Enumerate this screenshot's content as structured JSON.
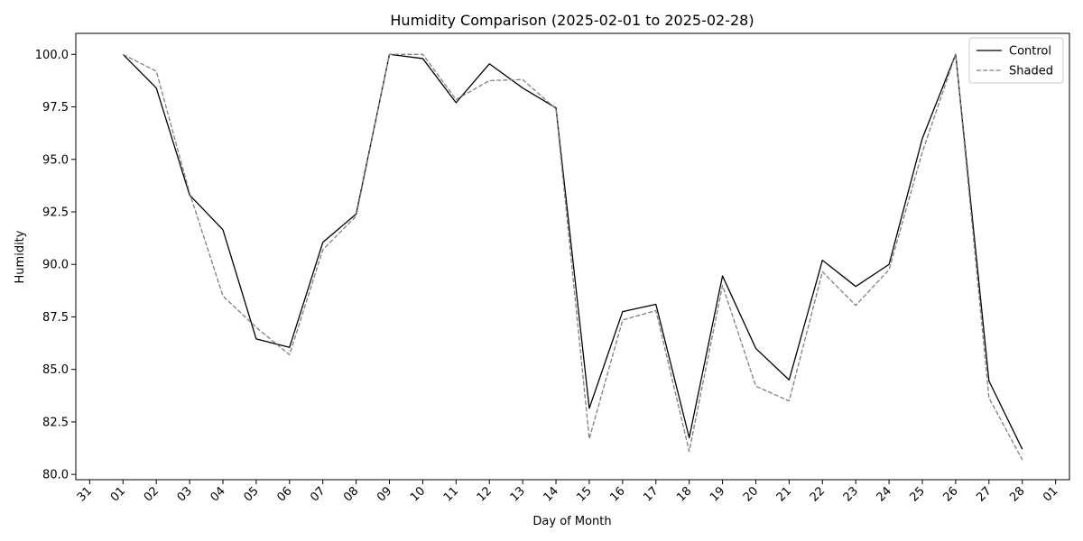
{
  "chart_data": {
    "type": "line",
    "title": "Humidity Comparison (2025-02-01 to 2025-02-28)",
    "xlabel": "Day of Month",
    "ylabel": "Humidity",
    "x_tick_labels": [
      "31",
      "01",
      "02",
      "03",
      "04",
      "05",
      "06",
      "07",
      "08",
      "09",
      "10",
      "11",
      "12",
      "13",
      "14",
      "15",
      "16",
      "17",
      "18",
      "19",
      "20",
      "21",
      "22",
      "23",
      "24",
      "25",
      "26",
      "27",
      "28",
      "01"
    ],
    "x_tick_dates": [
      "2025-01-31",
      "2025-02-01",
      "2025-02-02",
      "2025-02-03",
      "2025-02-04",
      "2025-02-05",
      "2025-02-06",
      "2025-02-07",
      "2025-02-08",
      "2025-02-09",
      "2025-02-10",
      "2025-02-11",
      "2025-02-12",
      "2025-02-13",
      "2025-02-14",
      "2025-02-15",
      "2025-02-16",
      "2025-02-17",
      "2025-02-18",
      "2025-02-19",
      "2025-02-20",
      "2025-02-21",
      "2025-02-22",
      "2025-02-23",
      "2025-02-24",
      "2025-02-25",
      "2025-02-26",
      "2025-02-27",
      "2025-02-28",
      "2025-03-01"
    ],
    "x": [
      "2025-02-01",
      "2025-02-02",
      "2025-02-03",
      "2025-02-04",
      "2025-02-05",
      "2025-02-06",
      "2025-02-07",
      "2025-02-08",
      "2025-02-09",
      "2025-02-10",
      "2025-02-11",
      "2025-02-12",
      "2025-02-13",
      "2025-02-14",
      "2025-02-15",
      "2025-02-16",
      "2025-02-17",
      "2025-02-18",
      "2025-02-19",
      "2025-02-20",
      "2025-02-21",
      "2025-02-22",
      "2025-02-23",
      "2025-02-24",
      "2025-02-25",
      "2025-02-26",
      "2025-02-27",
      "2025-02-28"
    ],
    "y_ticks": [
      "80.0",
      "82.5",
      "85.0",
      "87.5",
      "90.0",
      "92.5",
      "95.0",
      "97.5",
      "100.0"
    ],
    "ylim": [
      79.75,
      101.0
    ],
    "xlim": [
      "2025-01-30T14:00",
      "2025-03-01T10:00"
    ],
    "grid": false,
    "legend_position": "top-right",
    "series": [
      {
        "name": "Control",
        "color": "#000000",
        "style": "solid",
        "values": [
          100.0,
          98.4,
          93.3,
          91.65,
          86.45,
          86.05,
          91.05,
          92.4,
          100.0,
          99.8,
          97.7,
          99.55,
          98.4,
          97.45,
          83.15,
          87.75,
          88.1,
          81.75,
          89.45,
          86.0,
          84.5,
          90.2,
          88.95,
          90.0,
          96.0,
          100.0,
          84.45,
          81.2
        ]
      },
      {
        "name": "Shaded",
        "color": "#808080",
        "style": "dashed",
        "values": [
          100.0,
          99.2,
          93.4,
          88.5,
          87.0,
          85.7,
          90.7,
          92.3,
          100.0,
          100.0,
          97.85,
          98.75,
          98.8,
          97.4,
          81.7,
          87.35,
          87.8,
          81.1,
          89.0,
          84.2,
          83.5,
          89.65,
          88.05,
          89.75,
          95.35,
          100.0,
          83.65,
          80.7
        ]
      }
    ]
  }
}
